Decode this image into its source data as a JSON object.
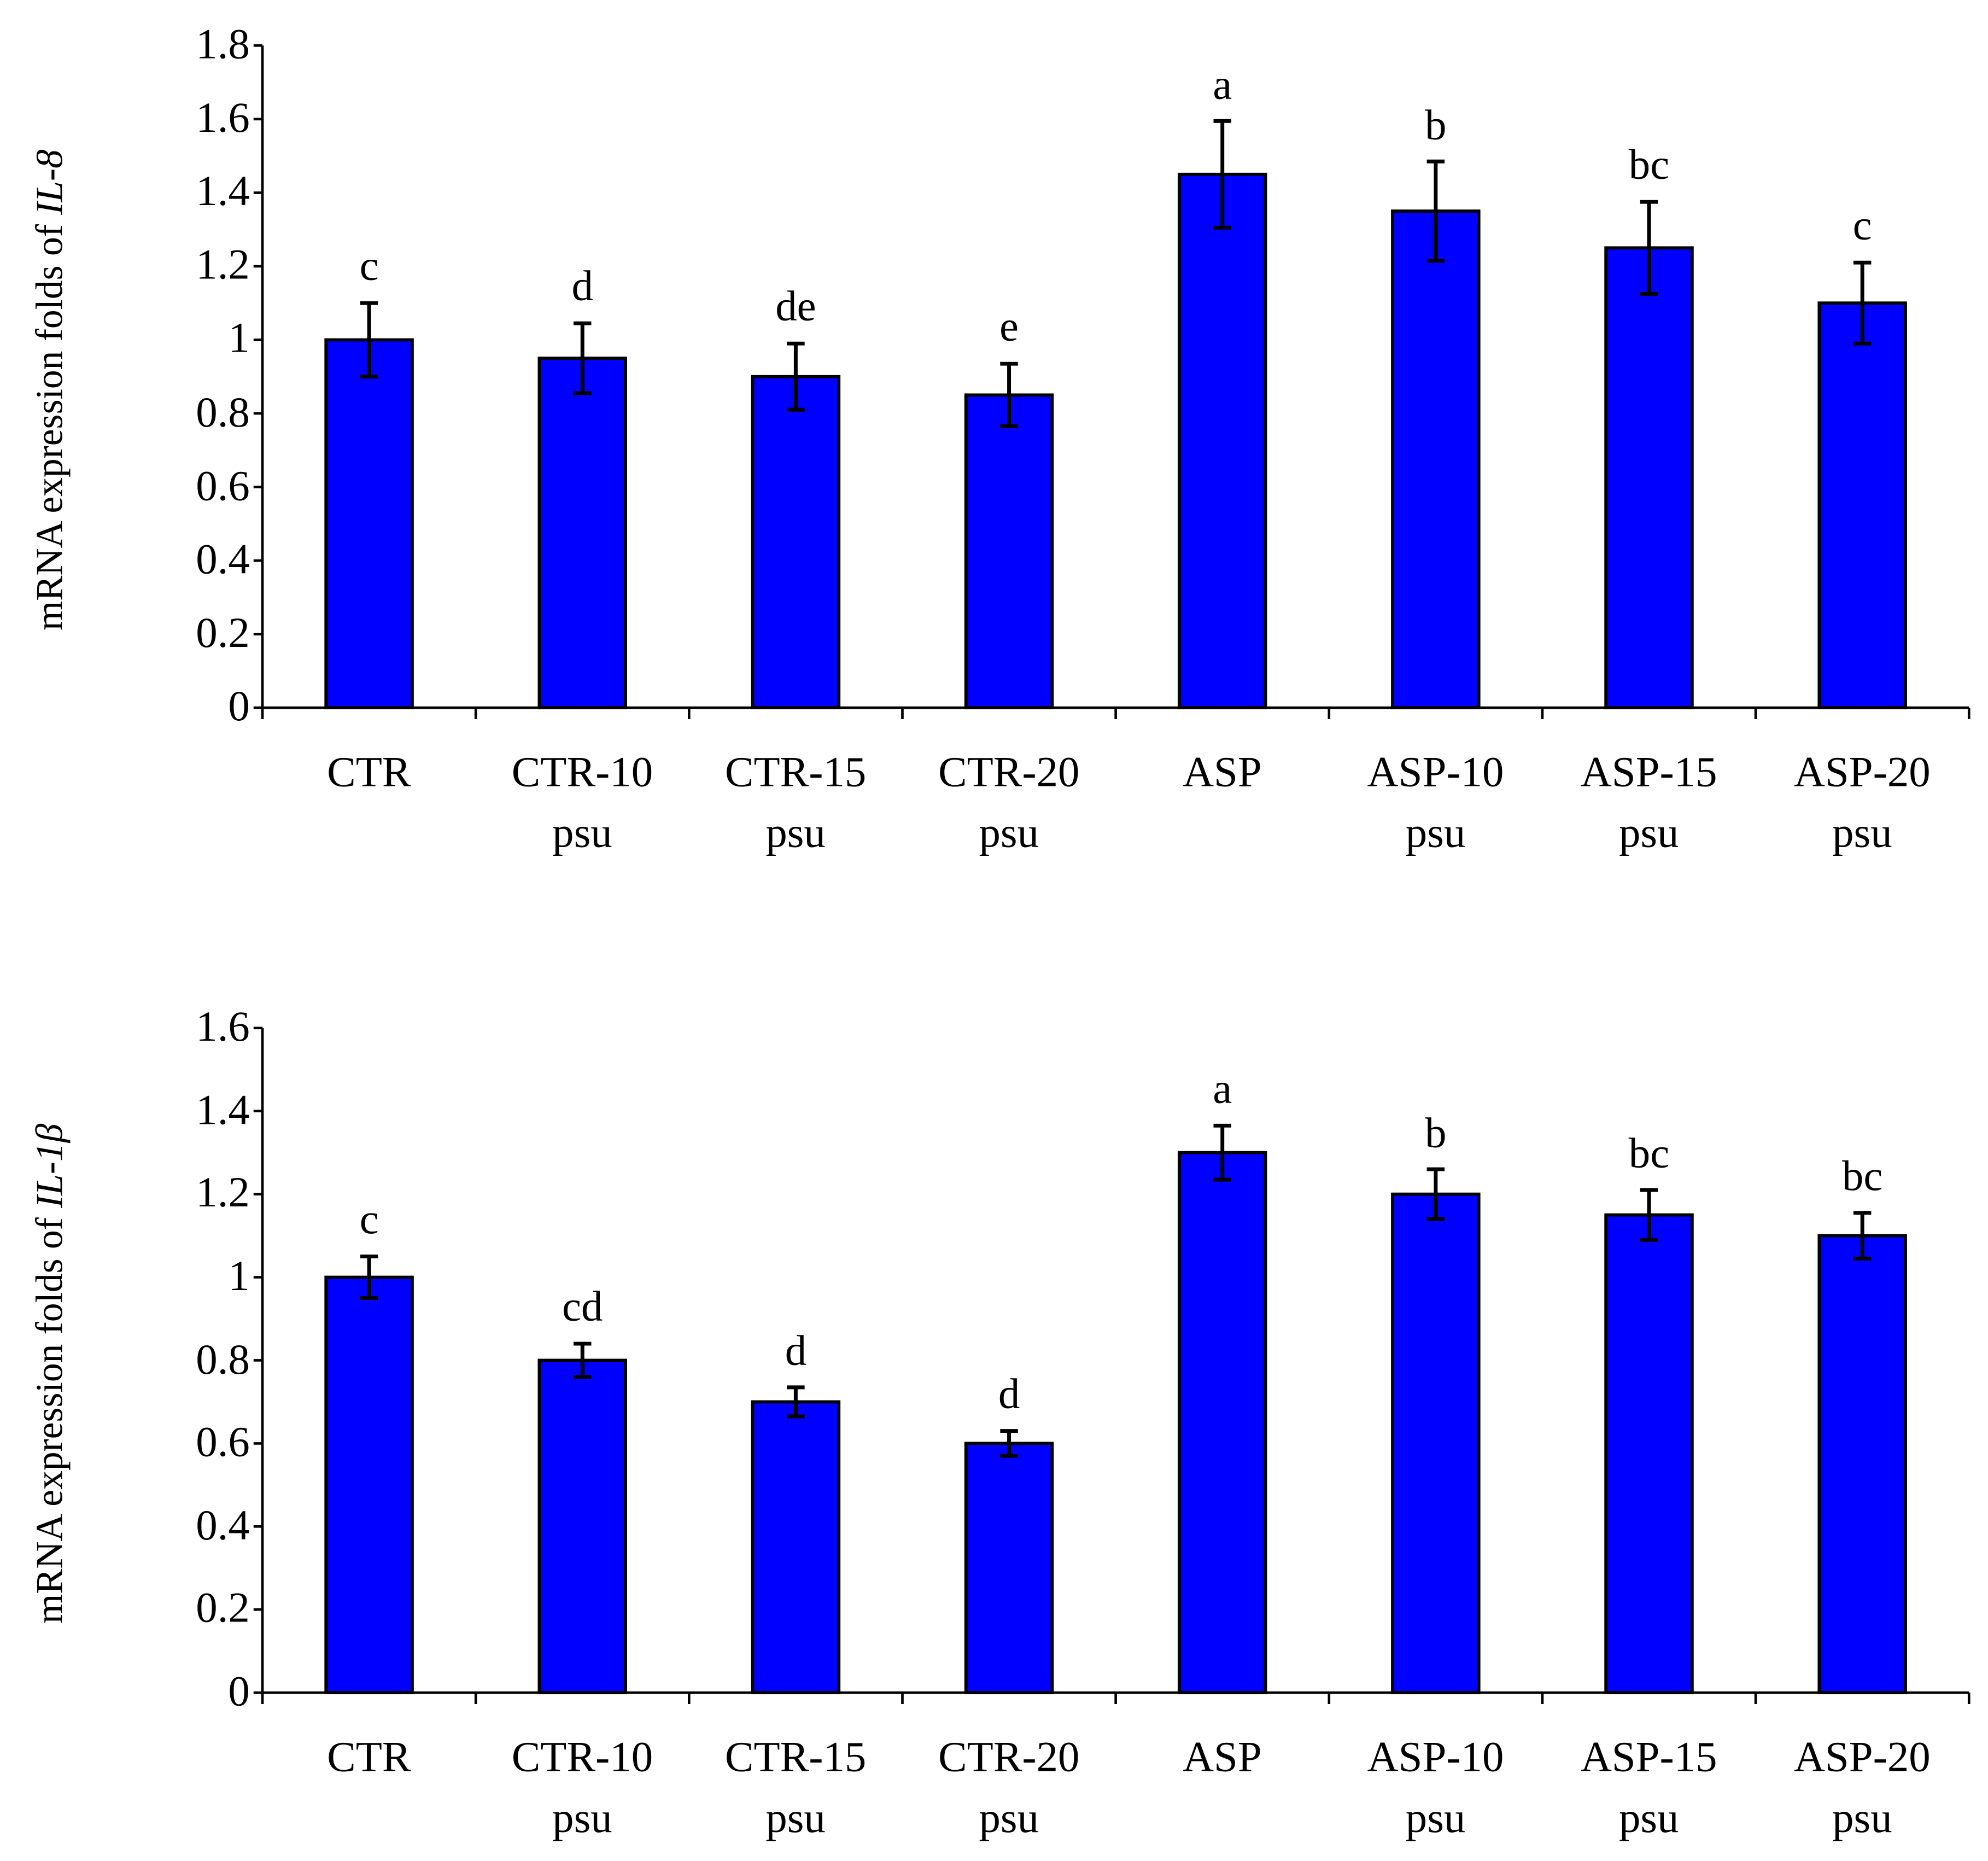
{
  "chart_data": [
    {
      "type": "bar",
      "ylabel": [
        "mRNA expression folds of ",
        "IL-8"
      ],
      "categories": [
        "CTR",
        "CTR-10\npsu",
        "CTR-15\npsu",
        "CTR-20\npsu",
        "ASP",
        "ASP-10\npsu",
        "ASP-15\npsu",
        "ASP-20\npsu"
      ],
      "values": [
        1.0,
        0.95,
        0.9,
        0.85,
        1.45,
        1.35,
        1.25,
        1.1
      ],
      "errors": [
        0.1,
        0.095,
        0.09,
        0.085,
        0.145,
        0.135,
        0.125,
        0.11
      ],
      "annotations": [
        "c",
        "d",
        "de",
        "e",
        "a",
        "b",
        "bc",
        "c"
      ],
      "color": "#0000ff",
      "ylim": [
        0,
        1.8
      ],
      "yticks": [
        0,
        0.2,
        0.4,
        0.6,
        0.8,
        1,
        1.2,
        1.4,
        1.6,
        1.8
      ]
    },
    {
      "type": "bar",
      "ylabel": [
        "mRNA expression folds of ",
        "IL-1β"
      ],
      "categories": [
        "CTR",
        "CTR-10\npsu",
        "CTR-15\npsu",
        "CTR-20\npsu",
        "ASP",
        "ASP-10\npsu",
        "ASP-15\npsu",
        "ASP-20\npsu"
      ],
      "values": [
        1.0,
        0.8,
        0.7,
        0.6,
        1.3,
        1.2,
        1.15,
        1.1
      ],
      "errors": [
        0.05,
        0.04,
        0.035,
        0.03,
        0.065,
        0.06,
        0.06,
        0.055
      ],
      "annotations": [
        "c",
        "cd",
        "d",
        "d",
        "a",
        "b",
        "bc",
        "bc"
      ],
      "color": "#0000ff",
      "ylim": [
        0,
        1.6
      ],
      "yticks": [
        0,
        0.2,
        0.4,
        0.6,
        0.8,
        1,
        1.2,
        1.4,
        1.6
      ]
    }
  ]
}
